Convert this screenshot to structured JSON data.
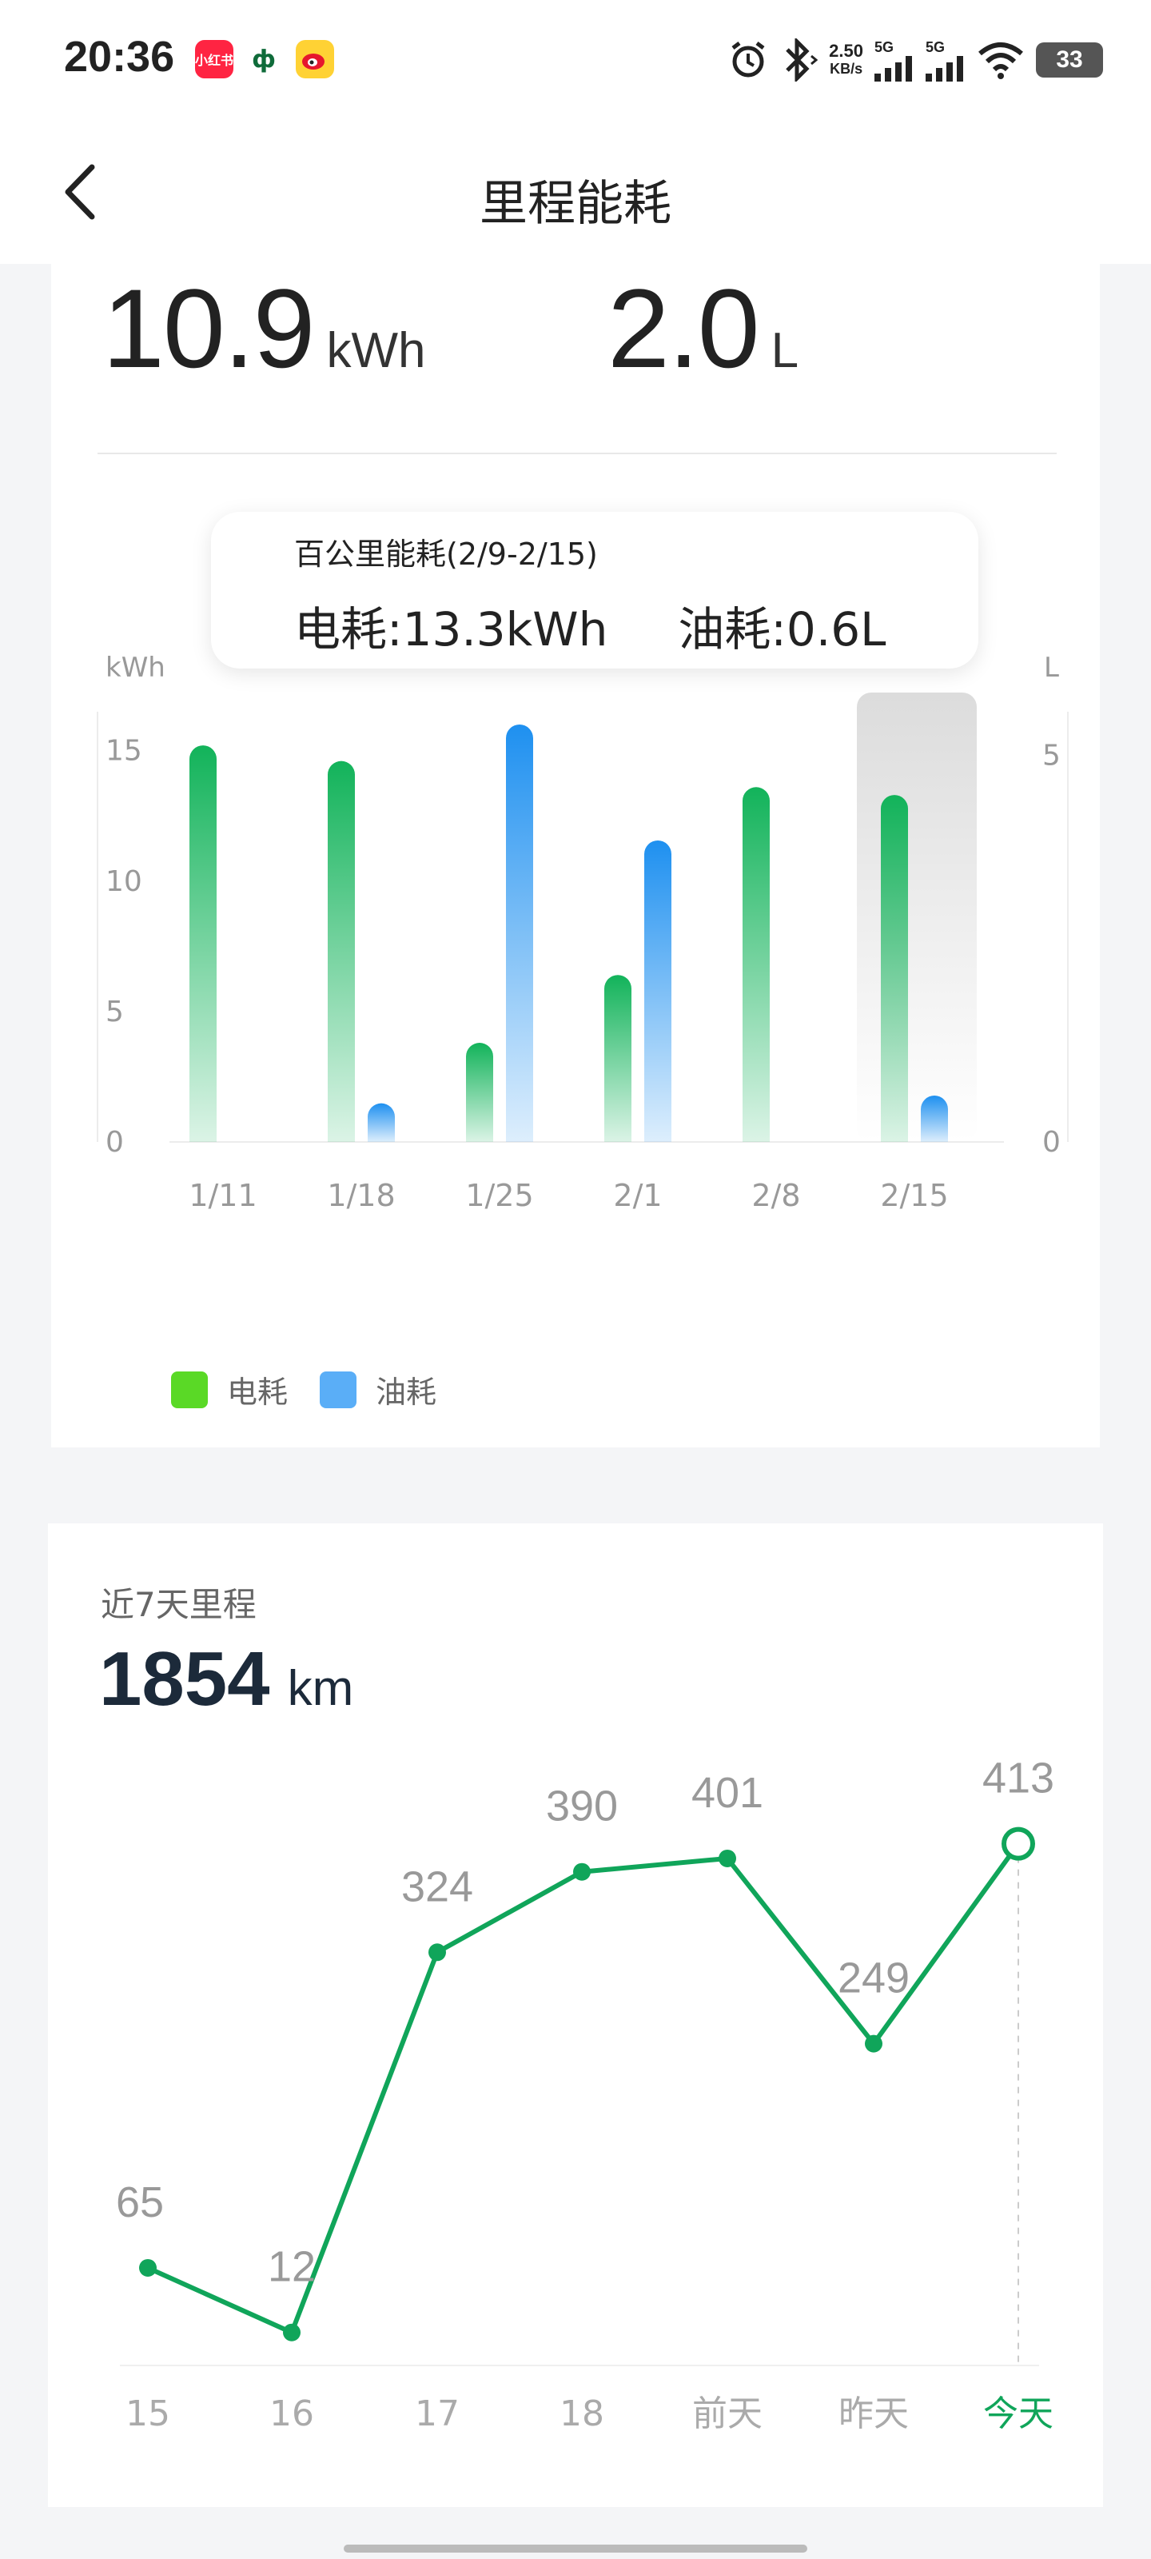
{
  "status_bar": {
    "time": "20:36",
    "apps": [
      "xiaohongshu-icon",
      "zhixuan-icon",
      "weibo-icon"
    ],
    "net_speed_value": "2.50",
    "net_speed_unit": "KB/s",
    "sig1": "5G",
    "sig2": "5G",
    "battery": "33"
  },
  "header": {
    "title": "里程能耗"
  },
  "energy": {
    "electric_value": "10.9",
    "electric_unit": "kWh",
    "fuel_value": "2.0",
    "fuel_unit": "L",
    "tooltip": {
      "title": "百公里能耗(2/9-2/15)",
      "electric": "电耗:13.3kWh",
      "fuel": "油耗:0.6L"
    },
    "legend": [
      {
        "label": "电耗",
        "color": "#5ad926"
      },
      {
        "label": "油耗",
        "color": "#5aaef7"
      }
    ]
  },
  "chart_data": [
    {
      "type": "bar",
      "categories": [
        "1/11",
        "1/18",
        "1/25",
        "2/1",
        "2/8",
        "2/15"
      ],
      "series": [
        {
          "name": "电耗",
          "axis": "left",
          "values": [
            15.2,
            14.6,
            3.8,
            6.4,
            13.6,
            13.3
          ]
        },
        {
          "name": "油耗",
          "axis": "right",
          "values": [
            0,
            0.5,
            5.4,
            3.9,
            0,
            0.6
          ]
        }
      ],
      "ylabel": "kWh",
      "y2label": "L",
      "ylim": [
        0,
        16
      ],
      "y2lim": [
        0,
        5.4
      ],
      "yticks": [
        0,
        5,
        10,
        15
      ],
      "y2ticks": [
        0,
        5
      ],
      "selected_index": 5,
      "colors": {
        "electric": "#12b35a",
        "fuel": "#1e90f0"
      }
    },
    {
      "type": "line",
      "categories": [
        "15",
        "16",
        "17",
        "18",
        "前天",
        "昨天",
        "今天"
      ],
      "values": [
        65,
        12,
        324,
        390,
        401,
        249,
        413
      ],
      "selected_index": 6,
      "color": "#10a55a"
    }
  ],
  "mileage": {
    "title": "近7天里程",
    "total": "1854",
    "unit": "km"
  }
}
